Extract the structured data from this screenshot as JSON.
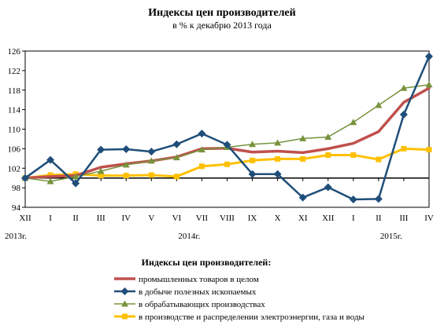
{
  "chart_data": {
    "type": "line",
    "title": "Индексы цен производителей",
    "subtitle": "в % к декабрю 2013 года",
    "categories": [
      "XII",
      "I",
      "II",
      "III",
      "IV",
      "V",
      "VI",
      "VII",
      "VIII",
      "IX",
      "X",
      "XI",
      "XII",
      "I",
      "II",
      "III",
      "IV"
    ],
    "year_labels": [
      {
        "text": "2013г.",
        "index": 0
      },
      {
        "text": "2014г.",
        "index": 6.5
      },
      {
        "text": "2015г.",
        "index": 14.5
      }
    ],
    "ylim": [
      94,
      126
    ],
    "yticks": [
      94,
      98,
      102,
      106,
      110,
      114,
      118,
      122,
      126
    ],
    "reference_line": 100,
    "legend_title": "Индексы цен производителей:",
    "legend_position": "bottom",
    "series": [
      {
        "name": "промышленных  товаров в целом",
        "color": "#c0504d",
        "marker": "none",
        "width": 3.5,
        "values": [
          100,
          100.3,
          100.5,
          102.2,
          102.9,
          103.5,
          104.3,
          106.0,
          106.1,
          105.3,
          105.5,
          105.2,
          106.0,
          107.1,
          109.5,
          115.5,
          118.4
        ]
      },
      {
        "name": "в добыче полезных ископаемых",
        "color": "#1f4e79",
        "marker": "diamond",
        "width": 2.5,
        "values": [
          100,
          103.7,
          98.9,
          105.8,
          105.9,
          105.4,
          106.9,
          109.1,
          106.8,
          100.8,
          100.8,
          96.0,
          98.1,
          95.6,
          95.7,
          113.0,
          124.9
        ]
      },
      {
        "name": "в обрабатывающих производствах",
        "color": "#77933c",
        "marker": "triangle",
        "width": 1.5,
        "values": [
          100,
          99.3,
          100.3,
          101.4,
          102.7,
          103.5,
          104.2,
          105.8,
          106.3,
          106.9,
          107.2,
          108.1,
          108.4,
          111.4,
          114.9,
          118.4,
          119.1
        ]
      },
      {
        "name": "в производстве и распределении  электроэнергии,  газа и воды",
        "color": "#ffc000",
        "marker": "square",
        "width": 3,
        "values": [
          100,
          100.6,
          100.8,
          100.5,
          100.5,
          100.6,
          100.3,
          102.4,
          102.8,
          103.6,
          103.9,
          103.9,
          104.7,
          104.7,
          103.8,
          106.0,
          105.8
        ]
      }
    ]
  }
}
